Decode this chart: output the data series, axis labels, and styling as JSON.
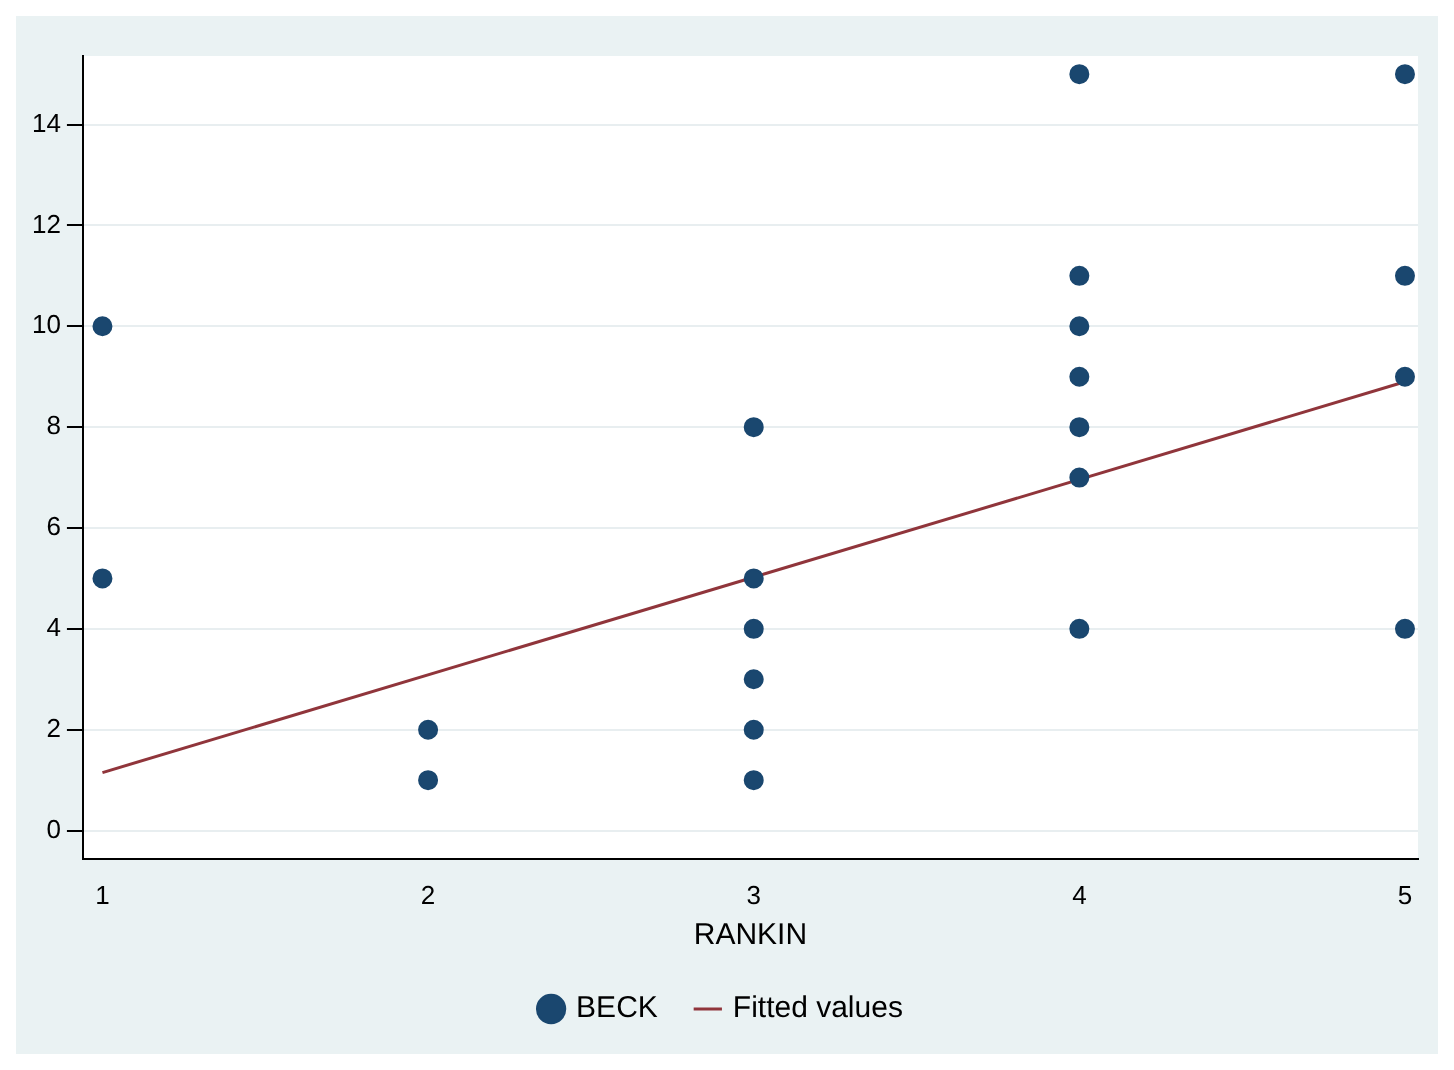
{
  "chart_data": {
    "type": "scatter",
    "xlabel": "RANKIN",
    "xlim": [
      0.94,
      5.04
    ],
    "xticks": [
      1,
      2,
      3,
      4,
      5
    ],
    "ylim": [
      -0.56,
      15.36
    ],
    "yticks": [
      0,
      2,
      4,
      6,
      8,
      10,
      12,
      14
    ],
    "grid": "y",
    "legend": "bottom",
    "series": [
      {
        "name": "BECK",
        "marker": "circle",
        "color": "#1a476f",
        "x": [
          1,
          1,
          2,
          2,
          3,
          3,
          3,
          3,
          3,
          3,
          4,
          4,
          4,
          4,
          4,
          4,
          4,
          5,
          5,
          5,
          5
        ],
        "values": [
          10,
          5,
          2,
          1,
          8,
          5,
          4,
          3,
          2,
          1,
          15,
          11,
          10,
          9,
          8,
          7,
          4,
          15,
          11,
          9,
          4
        ]
      },
      {
        "name": "Fitted values",
        "type": "line",
        "marker": "none",
        "color": "#90353b",
        "x": [
          1,
          5
        ],
        "values": [
          1.15,
          8.9
        ]
      }
    ]
  }
}
